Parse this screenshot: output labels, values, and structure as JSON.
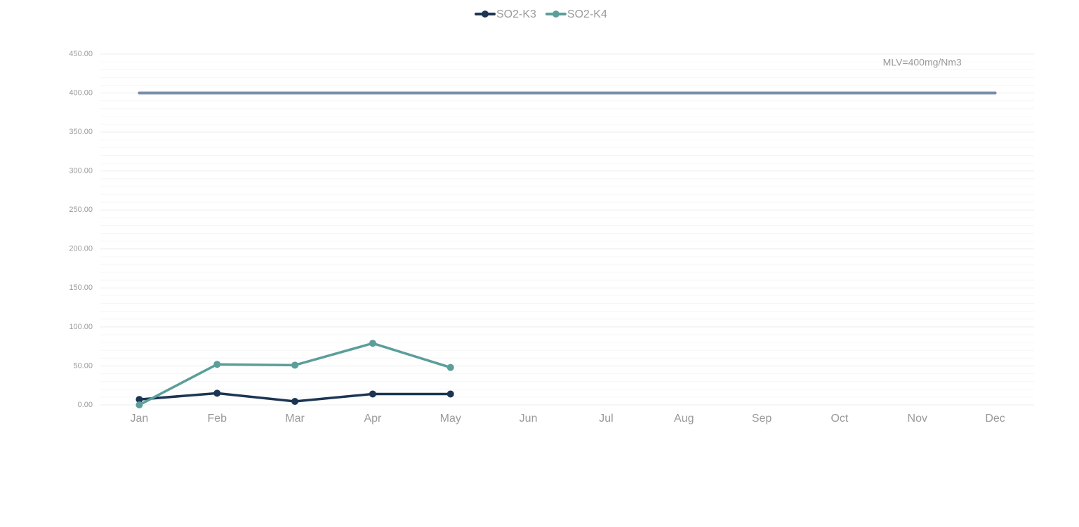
{
  "chart_data": {
    "type": "line",
    "categories": [
      "Jan",
      "Feb",
      "Mar",
      "Apr",
      "May",
      "Jun",
      "Jul",
      "Aug",
      "Sep",
      "Oct",
      "Nov",
      "Dec"
    ],
    "series": [
      {
        "name": "SO2-K3",
        "color": "#1c3553",
        "values": [
          7,
          15,
          4.5,
          14,
          14,
          null,
          null,
          null,
          null,
          null,
          null,
          null
        ]
      },
      {
        "name": "SO2-K4",
        "color": "#5b9e9a",
        "values": [
          0,
          52,
          51,
          79,
          48,
          null,
          null,
          null,
          null,
          null,
          null,
          null
        ]
      }
    ],
    "reference_line": {
      "value": 400,
      "label": "MLV=400mg/Nm3",
      "color": "#7b8fa8"
    },
    "ylim": [
      0,
      450
    ],
    "yticks": [
      {
        "value": 0,
        "label": "0.00"
      },
      {
        "value": 50,
        "label": "50.00"
      },
      {
        "value": 100,
        "label": "100.00"
      },
      {
        "value": 150,
        "label": "150.00"
      },
      {
        "value": 200,
        "label": "200.00"
      },
      {
        "value": 250,
        "label": "250.00"
      },
      {
        "value": 300,
        "label": "300.00"
      },
      {
        "value": 350,
        "label": "350.00"
      },
      {
        "value": 400,
        "label": "400.00"
      },
      {
        "value": 450,
        "label": "450.00"
      }
    ],
    "grid": true,
    "legend": "top"
  }
}
